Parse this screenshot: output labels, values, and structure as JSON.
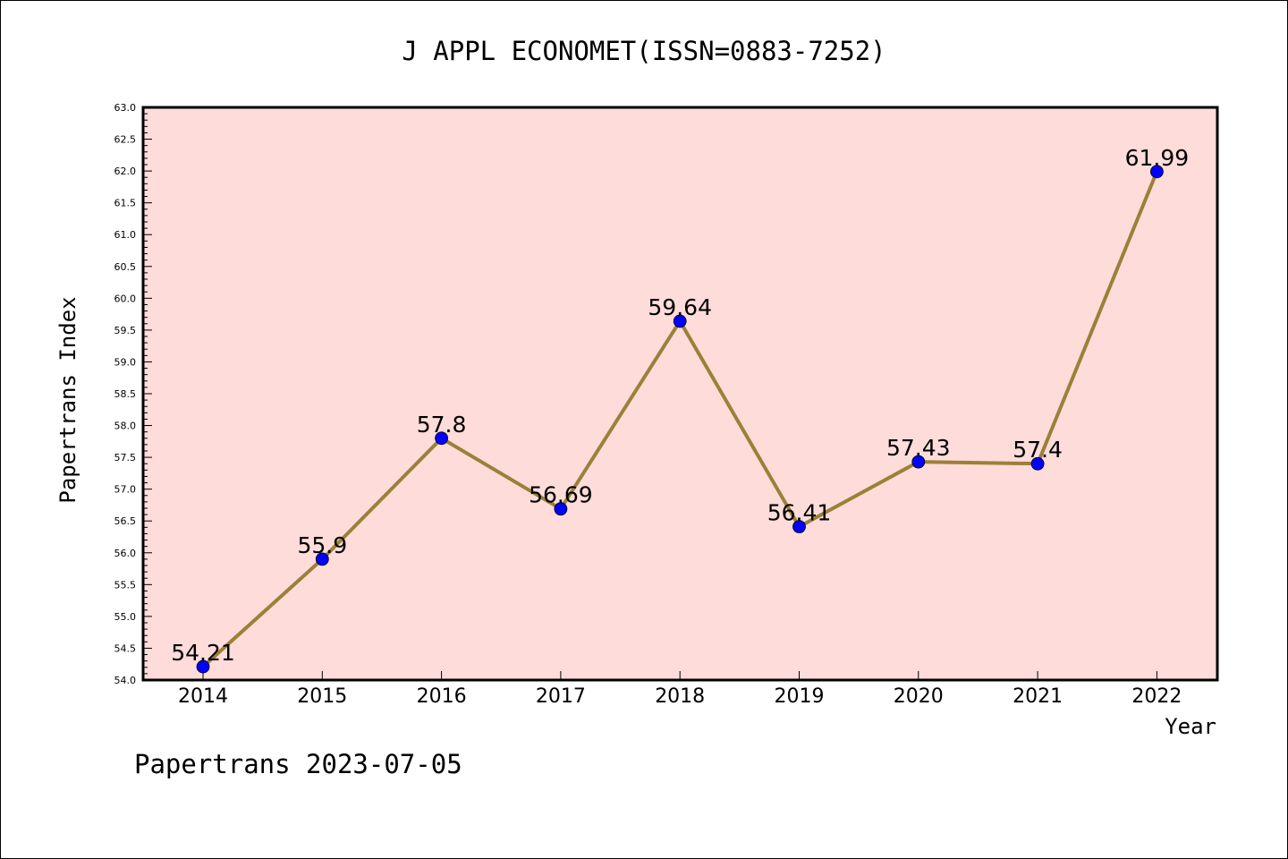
{
  "chart_data": {
    "type": "line",
    "title": "J APPL ECONOMET(ISSN=0883-7252)",
    "xlabel": "Year",
    "ylabel": "Papertrans Index",
    "categories": [
      "2014",
      "2015",
      "2016",
      "2017",
      "2018",
      "2019",
      "2020",
      "2021",
      "2022"
    ],
    "series": [
      {
        "values": [
          54.21,
          55.9,
          57.8,
          56.69,
          59.64,
          56.41,
          57.43,
          57.4,
          61.99
        ],
        "data_labels": [
          "54.21",
          "55.9",
          "57.8",
          "56.69",
          "59.64",
          "56.41",
          "57.43",
          "57.4",
          "61.99"
        ]
      }
    ],
    "ylim": [
      54.0,
      63.0
    ],
    "yticks": [
      "54.0",
      "54.5",
      "55.0",
      "55.5",
      "56.0",
      "56.5",
      "57.0",
      "57.5",
      "58.0",
      "58.5",
      "59.0",
      "59.5",
      "60.0",
      "60.5",
      "61.0",
      "61.5",
      "62.0",
      "62.5",
      "63.0"
    ],
    "grid": false,
    "colors": {
      "plot_background": "#fddcda",
      "line": "#9c8038",
      "marker": "#0000ff"
    }
  },
  "footer": "Papertrans 2023-07-05"
}
